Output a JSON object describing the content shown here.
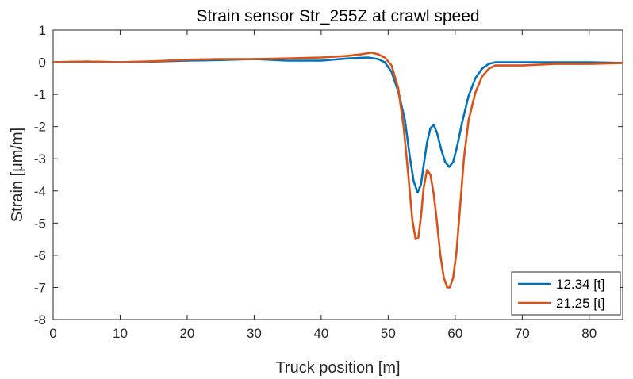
{
  "chart_data": {
    "type": "line",
    "title": "Strain sensor Str_255Z at crawl speed",
    "xlabel": "Truck position [m]",
    "ylabel": "Strain [μm/m]",
    "xlim": [
      0,
      85
    ],
    "ylim": [
      -8,
      1
    ],
    "xticks": [
      0,
      10,
      20,
      30,
      40,
      50,
      60,
      70,
      80
    ],
    "yticks": [
      1,
      0,
      -1,
      -2,
      -3,
      -4,
      -5,
      -6,
      -7,
      -8
    ],
    "grid": false,
    "legend_position": "bottom-right",
    "series": [
      {
        "name": "12.34 [t]",
        "color": "#0072BD",
        "x": [
          0,
          5,
          10,
          15,
          20,
          25,
          30,
          35,
          40,
          44,
          47,
          48.5,
          49.5,
          50.5,
          51.5,
          52.5,
          53.2,
          53.8,
          54.4,
          54.9,
          55.3,
          55.8,
          56.3,
          56.8,
          57.3,
          57.9,
          58.5,
          59.1,
          59.7,
          60.3,
          61,
          62,
          63,
          64,
          65,
          66,
          67,
          70,
          75,
          80,
          85
        ],
        "y": [
          0.0,
          0.02,
          0.0,
          0.02,
          0.05,
          0.07,
          0.1,
          0.05,
          0.05,
          0.12,
          0.15,
          0.1,
          0.0,
          -0.3,
          -0.9,
          -1.8,
          -2.9,
          -3.7,
          -4.05,
          -3.8,
          -3.2,
          -2.5,
          -2.05,
          -1.95,
          -2.2,
          -2.7,
          -3.1,
          -3.25,
          -3.1,
          -2.6,
          -1.9,
          -1.05,
          -0.5,
          -0.2,
          -0.05,
          0.0,
          0.0,
          0.0,
          0.0,
          0.0,
          -0.02
        ]
      },
      {
        "name": "21.25 [t]",
        "color": "#D95319",
        "x": [
          0,
          5,
          10,
          15,
          20,
          25,
          30,
          35,
          40,
          44,
          46,
          47.5,
          48.5,
          49.5,
          50.5,
          51.5,
          52.3,
          53,
          53.6,
          54.1,
          54.5,
          54.9,
          55.3,
          55.8,
          56.3,
          56.8,
          57.3,
          57.8,
          58.3,
          58.8,
          59.2,
          59.7,
          60.2,
          60.7,
          61.3,
          62,
          63,
          64,
          65,
          66,
          67,
          70,
          75,
          80,
          85
        ],
        "y": [
          0.0,
          0.02,
          0.0,
          0.03,
          0.08,
          0.1,
          0.1,
          0.12,
          0.15,
          0.2,
          0.25,
          0.3,
          0.25,
          0.15,
          -0.1,
          -0.8,
          -2.0,
          -3.5,
          -4.9,
          -5.5,
          -5.45,
          -4.8,
          -3.9,
          -3.35,
          -3.5,
          -4.1,
          -5.0,
          -6.0,
          -6.7,
          -7.0,
          -7.0,
          -6.7,
          -5.9,
          -4.6,
          -3.0,
          -1.8,
          -0.95,
          -0.45,
          -0.2,
          -0.1,
          -0.1,
          -0.1,
          -0.05,
          -0.05,
          -0.02
        ]
      }
    ]
  }
}
